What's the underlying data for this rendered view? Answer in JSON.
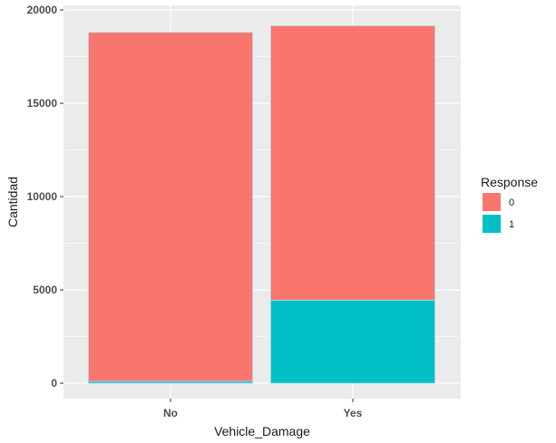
{
  "chart_data": {
    "type": "bar",
    "stacked": true,
    "categories": [
      "No",
      "Yes"
    ],
    "series": [
      {
        "name": "0",
        "values": [
          18700,
          14700
        ],
        "color": "#F8766D"
      },
      {
        "name": "1",
        "values": [
          100,
          4450
        ],
        "color": "#00BFC4"
      }
    ],
    "xlabel": "Vehicle_Damage",
    "ylabel": "Cantidad",
    "ylim": [
      0,
      20000
    ],
    "yticks": [
      0,
      5000,
      10000,
      15000,
      20000
    ],
    "legend": {
      "title": "Response",
      "placement": "right"
    },
    "grid": true,
    "panel_background": "#EBEBEB",
    "bar_outline": "#ADD8E6"
  }
}
